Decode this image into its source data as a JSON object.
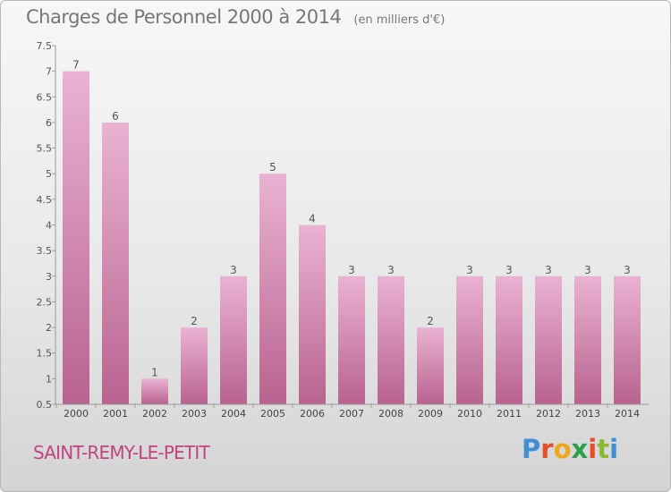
{
  "header": {
    "title": "Charges de Personnel 2000 à 2014",
    "unit": "(en milliers d'€)"
  },
  "footer": {
    "city": "SAINT-REMY-LE-PETIT",
    "logo_text": "Proxiti"
  },
  "colors": {
    "bar_top": "#eab2d3",
    "bar_bottom": "#b8638f",
    "city_text": "#c0447f",
    "logo_letters": [
      "#3f8fd2",
      "#e94e2b",
      "#f0a81b",
      "#2aa24a",
      "#e94e2b",
      "#8ab833",
      "#3f8fd2"
    ]
  },
  "chart_data": {
    "type": "bar",
    "title": "Charges de Personnel 2000 à 2014",
    "subtitle": "(en milliers d'€)",
    "categories": [
      "2000",
      "2001",
      "2002",
      "2003",
      "2004",
      "2005",
      "2006",
      "2007",
      "2008",
      "2009",
      "2010",
      "2011",
      "2012",
      "2013",
      "2014"
    ],
    "values": [
      7,
      6,
      1,
      2,
      3,
      5,
      4,
      3,
      3,
      2,
      3,
      3,
      3,
      3,
      3
    ],
    "data_labels": [
      "7",
      "6",
      "1",
      "2",
      "3",
      "5",
      "4",
      "3",
      "3",
      "2",
      "3",
      "3",
      "3",
      "3",
      "3"
    ],
    "yticks": [
      "0.5",
      "1",
      "1.5",
      "2",
      "2.5",
      "3",
      "3.5",
      "4",
      "4.5",
      "5",
      "5.5",
      "6",
      "6.5",
      "7",
      "7.5"
    ],
    "ytick_values": [
      0.5,
      1,
      1.5,
      2,
      2.5,
      3,
      3.5,
      4,
      4.5,
      5,
      5.5,
      6,
      6.5,
      7,
      7.5
    ],
    "ylim": [
      0.5,
      7.5
    ],
    "xlabel": "",
    "ylabel": "",
    "grid": false,
    "legend": "none"
  }
}
